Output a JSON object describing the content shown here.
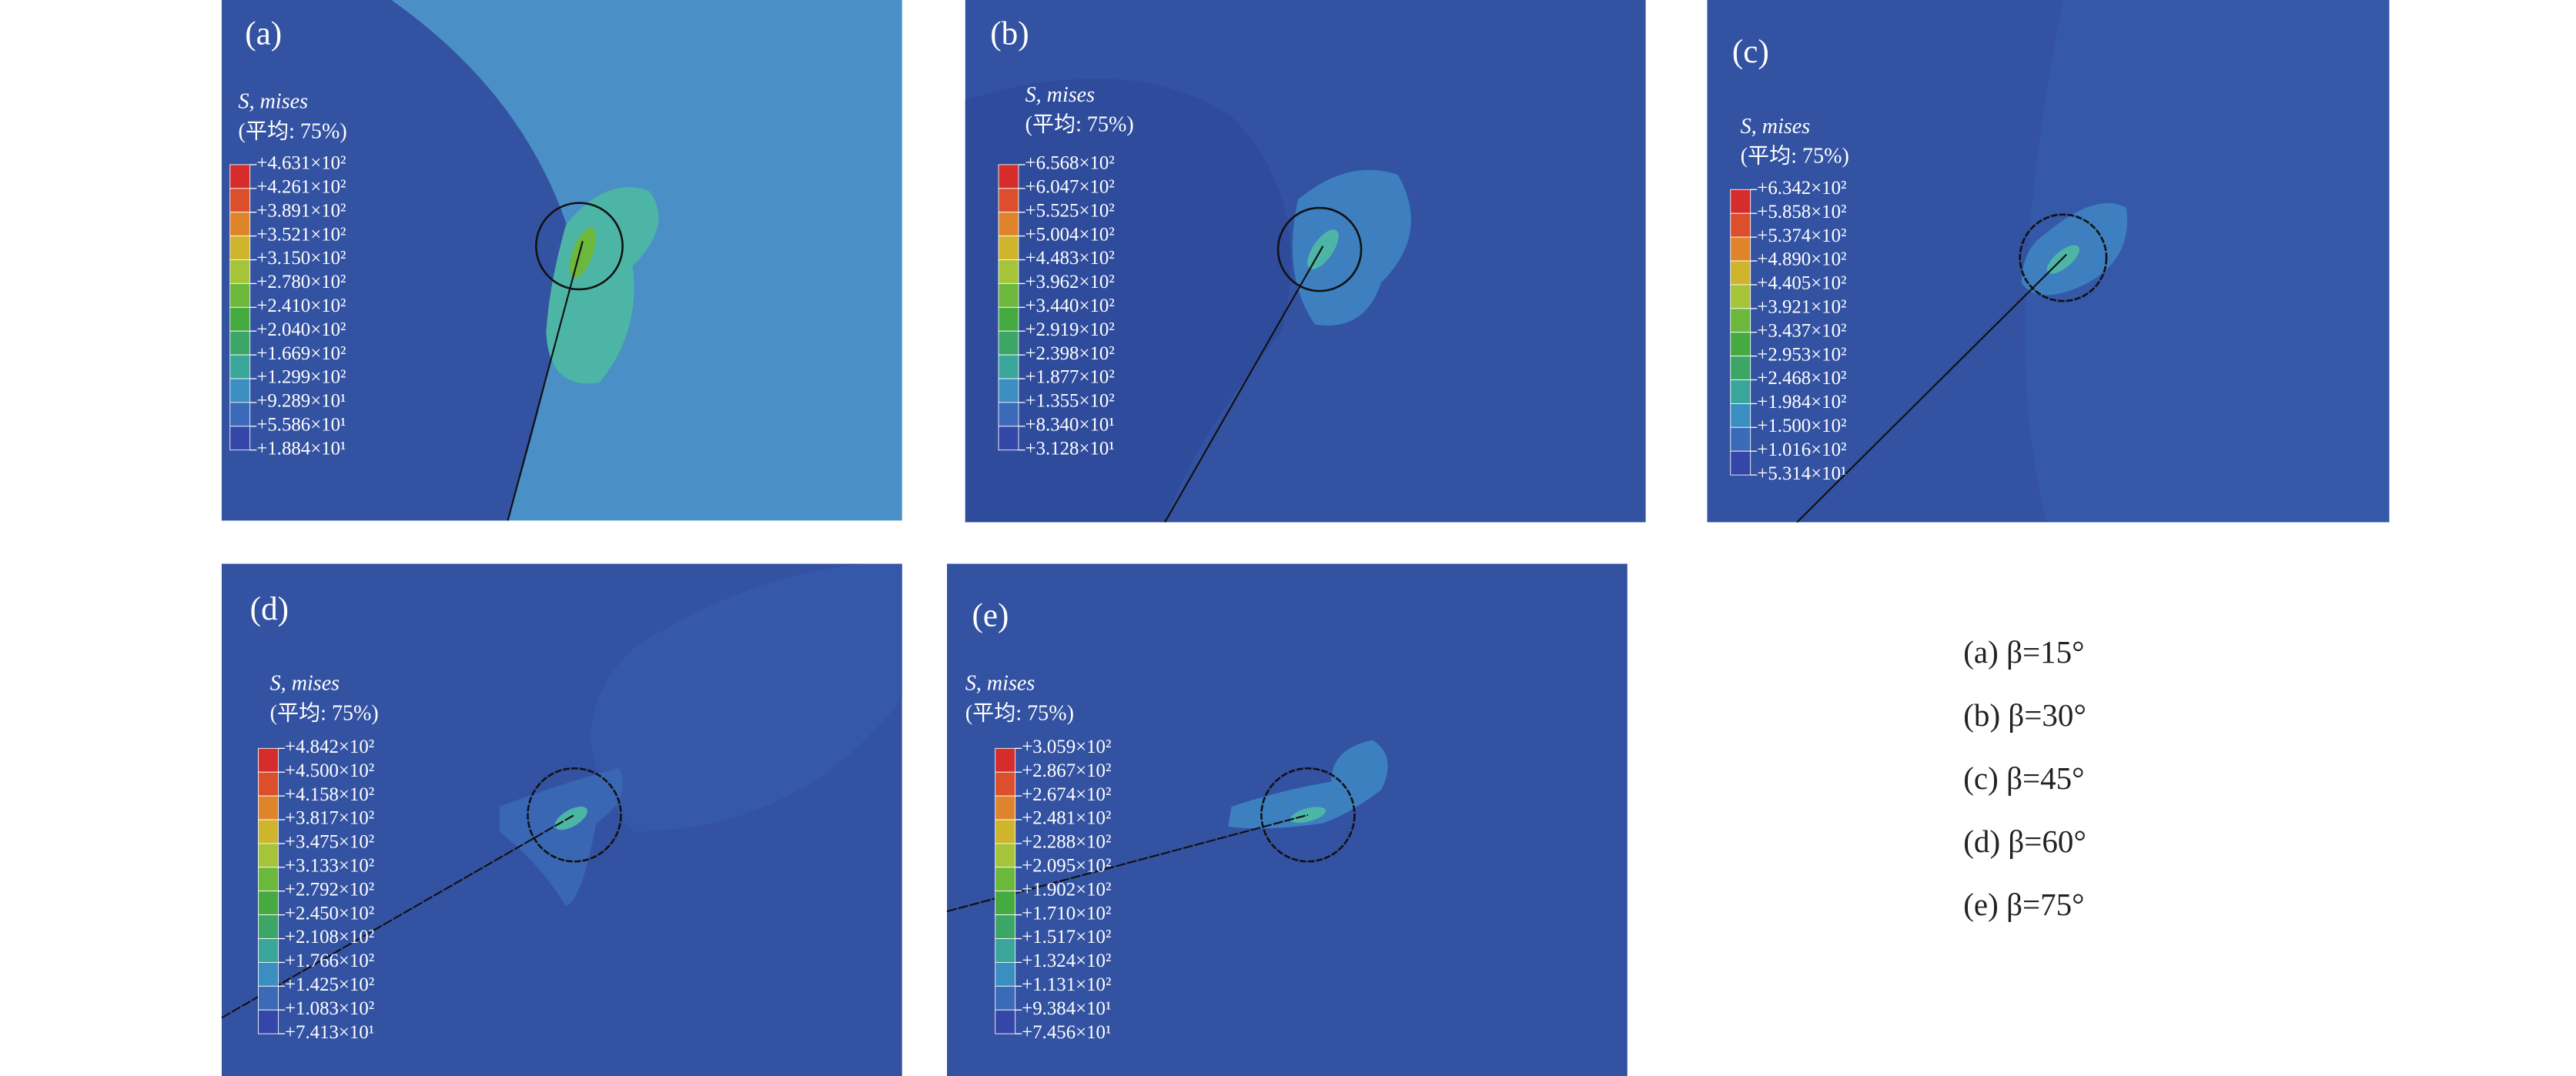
{
  "band_colors": [
    "#d62c2c",
    "#db4f2c",
    "#e0842c",
    "#cfb52c",
    "#a6c43a",
    "#6bb83c",
    "#45aa3f",
    "#3ca667",
    "#3aa69a",
    "#3a8fc0",
    "#3a6ab8",
    "#3446a8"
  ],
  "panels": [
    {
      "label": "(a)",
      "legend_title": "S, mises",
      "legend_note": "(平均: 75%)",
      "legend_values": [
        "+4.631×10²",
        "+4.261×10²",
        "+3.891×10²",
        "+3.521×10²",
        "+3.150×10²",
        "+2.780×10²",
        "+2.410×10²",
        "+2.040×10²",
        "+1.669×10²",
        "+1.299×10²",
        "+9.289×10¹",
        "+5.586×10¹",
        "+1.884×10¹"
      ]
    },
    {
      "label": "(b)",
      "legend_title": "S, mises",
      "legend_note": "(平均: 75%)",
      "legend_values": [
        "+6.568×10²",
        "+6.047×10²",
        "+5.525×10²",
        "+5.004×10²",
        "+4.483×10²",
        "+3.962×10²",
        "+3.440×10²",
        "+2.919×10²",
        "+2.398×10²",
        "+1.877×10²",
        "+1.355×10²",
        "+8.340×10¹",
        "+3.128×10¹"
      ]
    },
    {
      "label": "(c)",
      "legend_title": "S, mises",
      "legend_note": "(平均: 75%)",
      "legend_values": [
        "+6.342×10²",
        "+5.858×10²",
        "+5.374×10²",
        "+4.890×10²",
        "+4.405×10²",
        "+3.921×10²",
        "+3.437×10²",
        "+2.953×10²",
        "+2.468×10²",
        "+1.984×10²",
        "+1.500×10²",
        "+1.016×10²",
        "+5.314×10¹"
      ]
    },
    {
      "label": "(d)",
      "legend_title": "S, mises",
      "legend_note": "(平均: 75%)",
      "legend_values": [
        "+4.842×10²",
        "+4.500×10²",
        "+4.158×10²",
        "+3.817×10²",
        "+3.475×10²",
        "+3.133×10²",
        "+2.792×10²",
        "+2.450×10²",
        "+2.108×10²",
        "+1.766×10²",
        "+1.425×10²",
        "+1.083×10²",
        "+7.413×10¹"
      ]
    },
    {
      "label": "(e)",
      "legend_title": "S, mises",
      "legend_note": "(平均: 75%)",
      "legend_values": [
        "+3.059×10²",
        "+2.867×10²",
        "+2.674×10²",
        "+2.481×10²",
        "+2.288×10²",
        "+2.095×10²",
        "+1.902×10²",
        "+1.710×10²",
        "+1.517×10²",
        "+1.324×10²",
        "+1.131×10²",
        "+9.384×10¹",
        "+7.456×10¹"
      ]
    }
  ],
  "captions": [
    "(a) β=15°",
    "(b) β=30°",
    "(c) β=45°",
    "(d) β=60°",
    "(e) β=75°"
  ]
}
